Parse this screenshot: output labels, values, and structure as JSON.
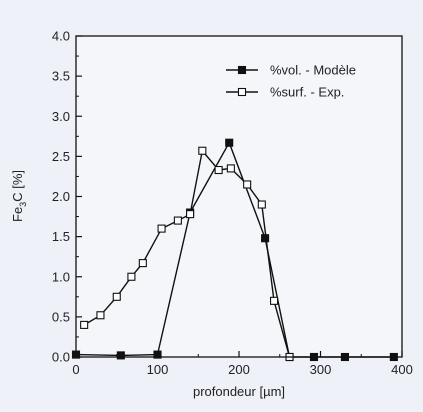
{
  "chart_data": {
    "type": "line",
    "title": "",
    "xlabel": "profondeur [µm]",
    "ylabel": "Fe3C [%]",
    "ylabel_parts": {
      "base": "Fe",
      "sub": "3",
      "rest": "C [%]"
    },
    "xlim": [
      0,
      400
    ],
    "ylim": [
      0,
      4.0
    ],
    "x_ticks": [
      0,
      100,
      200,
      300,
      400
    ],
    "x_tick_labels": [
      "0",
      "100",
      "200",
      "300",
      "400"
    ],
    "y_ticks": [
      0,
      0.5,
      1.0,
      1.5,
      2.0,
      2.5,
      3.0,
      3.5,
      4.0
    ],
    "y_tick_labels": [
      "0.0",
      "0.5",
      "1.0",
      "1.5",
      "2.0",
      "2.5",
      "3.0",
      "3.5",
      "4.0"
    ],
    "grid": false,
    "legend_position": "top-right",
    "series": [
      {
        "name": "%vol. - Modèle",
        "marker": "filled-square",
        "color": "#111111",
        "x": [
          0,
          55,
          100,
          140,
          188,
          232,
          262,
          292,
          330,
          390
        ],
        "y": [
          0.03,
          0.02,
          0.03,
          1.8,
          2.67,
          1.48,
          0.0,
          0.0,
          0.0,
          0.0
        ]
      },
      {
        "name": "%surf. - Exp.",
        "marker": "open-square",
        "color": "#111111",
        "x": [
          10,
          30,
          50,
          68,
          82,
          105,
          125,
          140,
          155,
          175,
          190,
          210,
          228,
          243,
          262
        ],
        "y": [
          0.4,
          0.52,
          0.75,
          1.0,
          1.17,
          1.6,
          1.7,
          1.78,
          2.57,
          2.33,
          2.35,
          2.15,
          1.9,
          0.7,
          0.0
        ]
      }
    ]
  }
}
